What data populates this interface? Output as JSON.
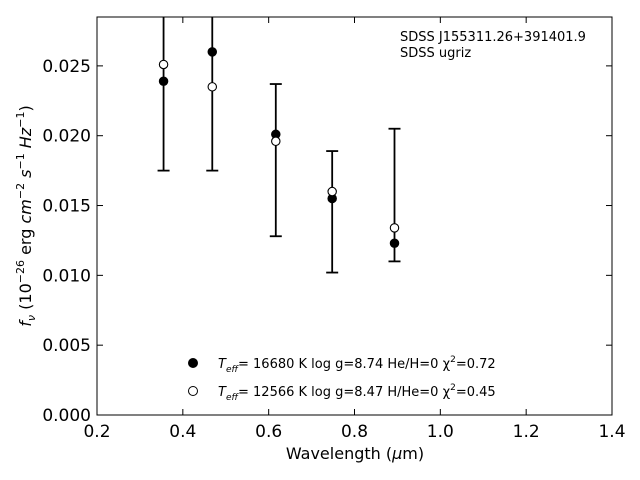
{
  "chart_data": {
    "type": "scatter",
    "annotation": [
      "SDSS J155311.26+391401.9",
      "SDSS ugriz"
    ],
    "xlabel": {
      "text": "Wavelength (",
      "symbol": "μ",
      "suffix": "m)"
    },
    "ylabel": {
      "text": "f",
      "sub": "ν",
      "units": " (10",
      "exp1": "−26",
      "mid": " erg ",
      "cm": "cm",
      "exp2": "−2",
      "s": " s",
      "exp3": "−1",
      "hz": " Hz",
      "exp4": "−1",
      "close": ")"
    },
    "xlim": [
      0.2,
      1.4
    ],
    "ylim": [
      0.0,
      0.0285
    ],
    "xticks": [
      "0.2",
      "0.4",
      "0.6",
      "0.8",
      "1.0",
      "1.2",
      "1.4"
    ],
    "xtick_values": [
      0.2,
      0.4,
      0.6,
      0.8,
      1.0,
      1.2,
      1.4
    ],
    "yticks": [
      "0.000",
      "0.005",
      "0.010",
      "0.015",
      "0.020",
      "0.025"
    ],
    "ytick_values": [
      0.0,
      0.005,
      0.01,
      0.015,
      0.02,
      0.025
    ],
    "grid": false,
    "legend_position": "bottom-center",
    "observed": {
      "x": [
        0.3551,
        0.4686,
        0.6166,
        0.748,
        0.8932
      ],
      "y": [
        0.0239,
        0.026,
        0.0201,
        0.0155,
        0.0123
      ],
      "ylow": [
        0.0175,
        0.0175,
        0.0128,
        0.0102,
        0.011
      ],
      "yhigh": [
        0.03,
        0.03,
        0.0237,
        0.0189,
        0.0205
      ]
    },
    "series": [
      {
        "legend": {
          "t": "T",
          "sub": "eff",
          "rest": "= 16680 K  log g=8.74  He/H=0  χ",
          "sup": "2",
          "tail": "=0.72"
        },
        "marker": "filled",
        "color": "#000000",
        "values": [
          0.0239,
          0.026,
          0.0201,
          0.0155,
          0.0123
        ]
      },
      {
        "legend": {
          "t": "T",
          "sub": "eff",
          "rest": "= 12566 K  log g=8.47  H/He=0  χ",
          "sup": "2",
          "tail": "=0.45"
        },
        "marker": "open",
        "color": "#000000",
        "values": [
          0.0251,
          0.0235,
          0.0196,
          0.016,
          0.0134
        ]
      }
    ]
  }
}
